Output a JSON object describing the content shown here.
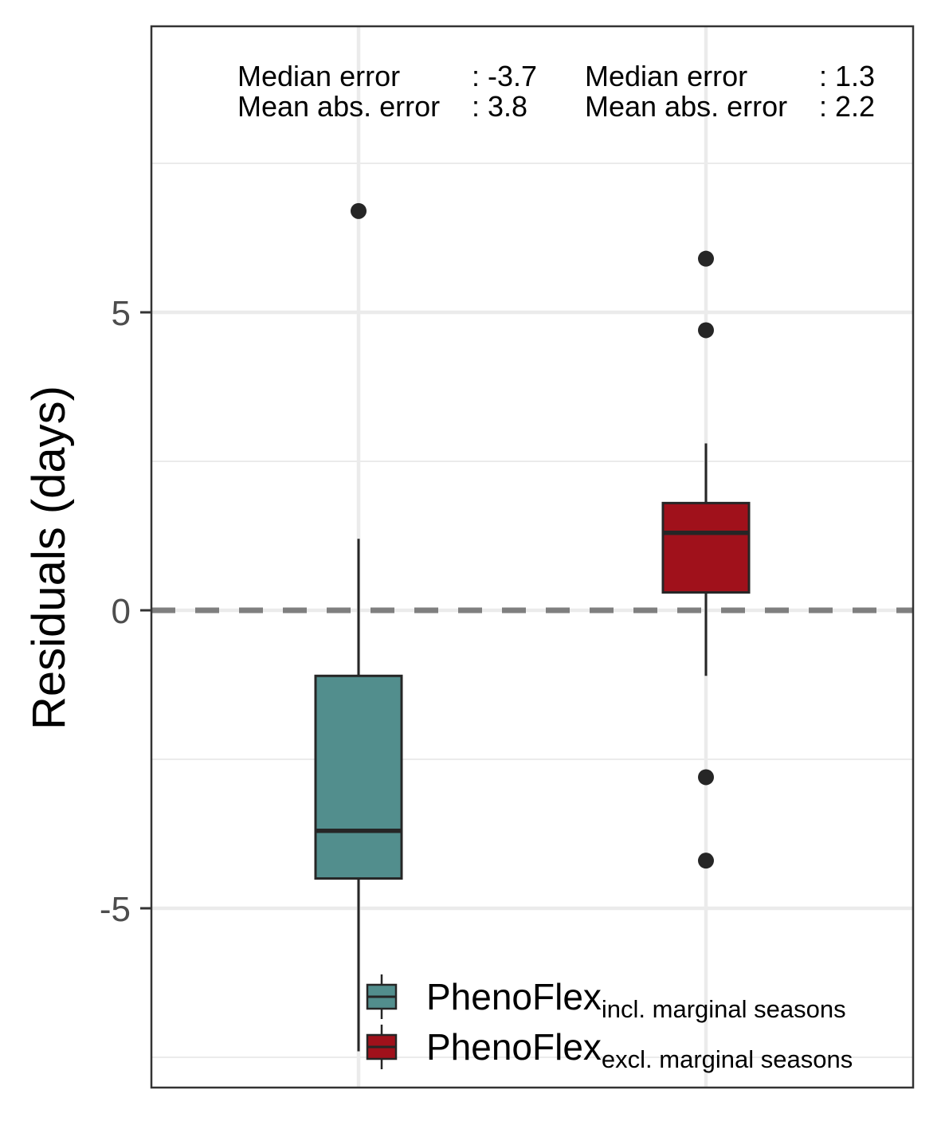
{
  "chart_data": {
    "type": "boxplot",
    "ylabel": "Residuals (days)",
    "ylim": [
      -8.2,
      9.9
    ],
    "yticks": [
      -5,
      0,
      5
    ],
    "ytick_labels": [
      "-5",
      "0",
      "5"
    ],
    "grid": true,
    "reference_line": {
      "y": 0,
      "style": "dashed"
    },
    "series": [
      {
        "name": "PhenoFlex incl. marginal seasons",
        "legend_main": "PhenoFlex",
        "legend_sub": "incl. marginal seasons",
        "color": "#528e8d",
        "whisker_low": -7.4,
        "q1": -4.5,
        "median": -3.7,
        "q3": -1.1,
        "whisker_high": 1.2,
        "outliers": [
          6.7
        ],
        "stats": {
          "median_label": "Median error",
          "median_value": ": -3.7",
          "mae_label": "Mean abs. error",
          "mae_value": ": 3.8"
        }
      },
      {
        "name": "PhenoFlex excl. marginal seasons",
        "legend_main": "PhenoFlex",
        "legend_sub": "excl. marginal seasons",
        "color": "#a0111b",
        "whisker_low": -1.1,
        "q1": 0.3,
        "median": 1.3,
        "q3": 1.8,
        "whisker_high": 2.8,
        "outliers": [
          5.9,
          4.7,
          -2.8,
          -4.2
        ],
        "stats": {
          "median_label": "Median error",
          "median_value": ": 1.3",
          "mae_label": "Mean abs. error",
          "mae_value": ": 2.2"
        }
      }
    ],
    "legend_position": "bottom-right"
  }
}
